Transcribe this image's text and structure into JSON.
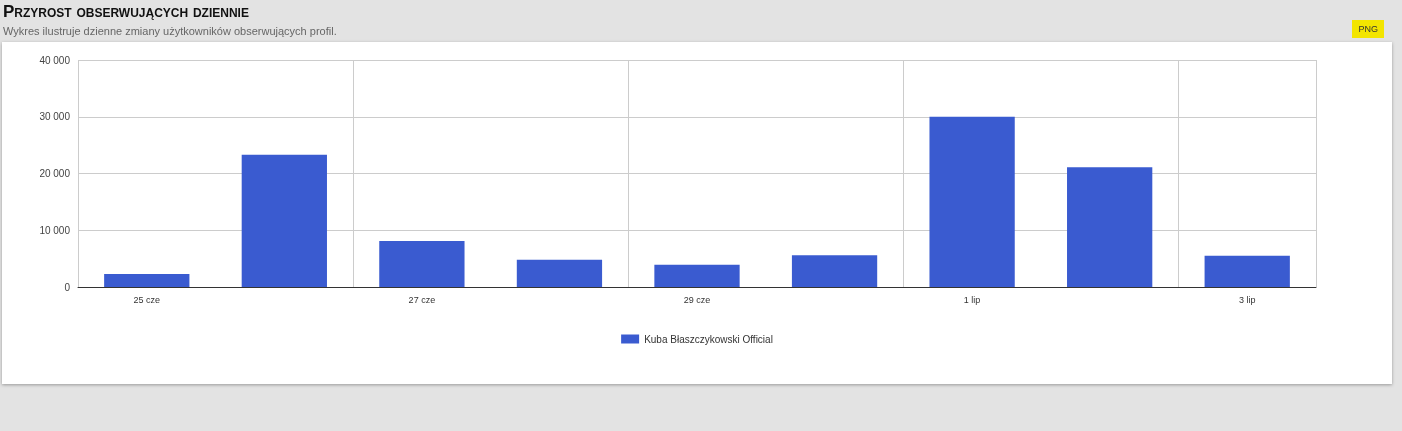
{
  "chart_data": {
    "type": "bar",
    "title": "Przyrost obserwujących dziennie",
    "subtitle": "Wykres ilustruje dzienne zmiany użytkowników obserwujących profil.",
    "annotations": [
      "PNG"
    ],
    "categories": [
      "25 cze",
      null,
      "27 cze",
      null,
      "29 cze",
      null,
      "1 lip",
      null,
      "3 lip"
    ],
    "series": [
      {
        "name": "Kuba Błaszczykowski Official",
        "color": "#3a5bd0",
        "values": [
          2300,
          23300,
          8100,
          4800,
          3900,
          5600,
          30000,
          21100,
          5500
        ]
      }
    ],
    "ylim": [
      0,
      40000
    ],
    "yticks": [
      {
        "value": 0,
        "label": "0"
      },
      {
        "value": 10000,
        "label": "10 000"
      },
      {
        "value": 20000,
        "label": "20 000"
      },
      {
        "value": 30000,
        "label": "30 000"
      },
      {
        "value": 40000,
        "label": "40 000"
      }
    ],
    "grid": true,
    "legend": "bottom"
  }
}
